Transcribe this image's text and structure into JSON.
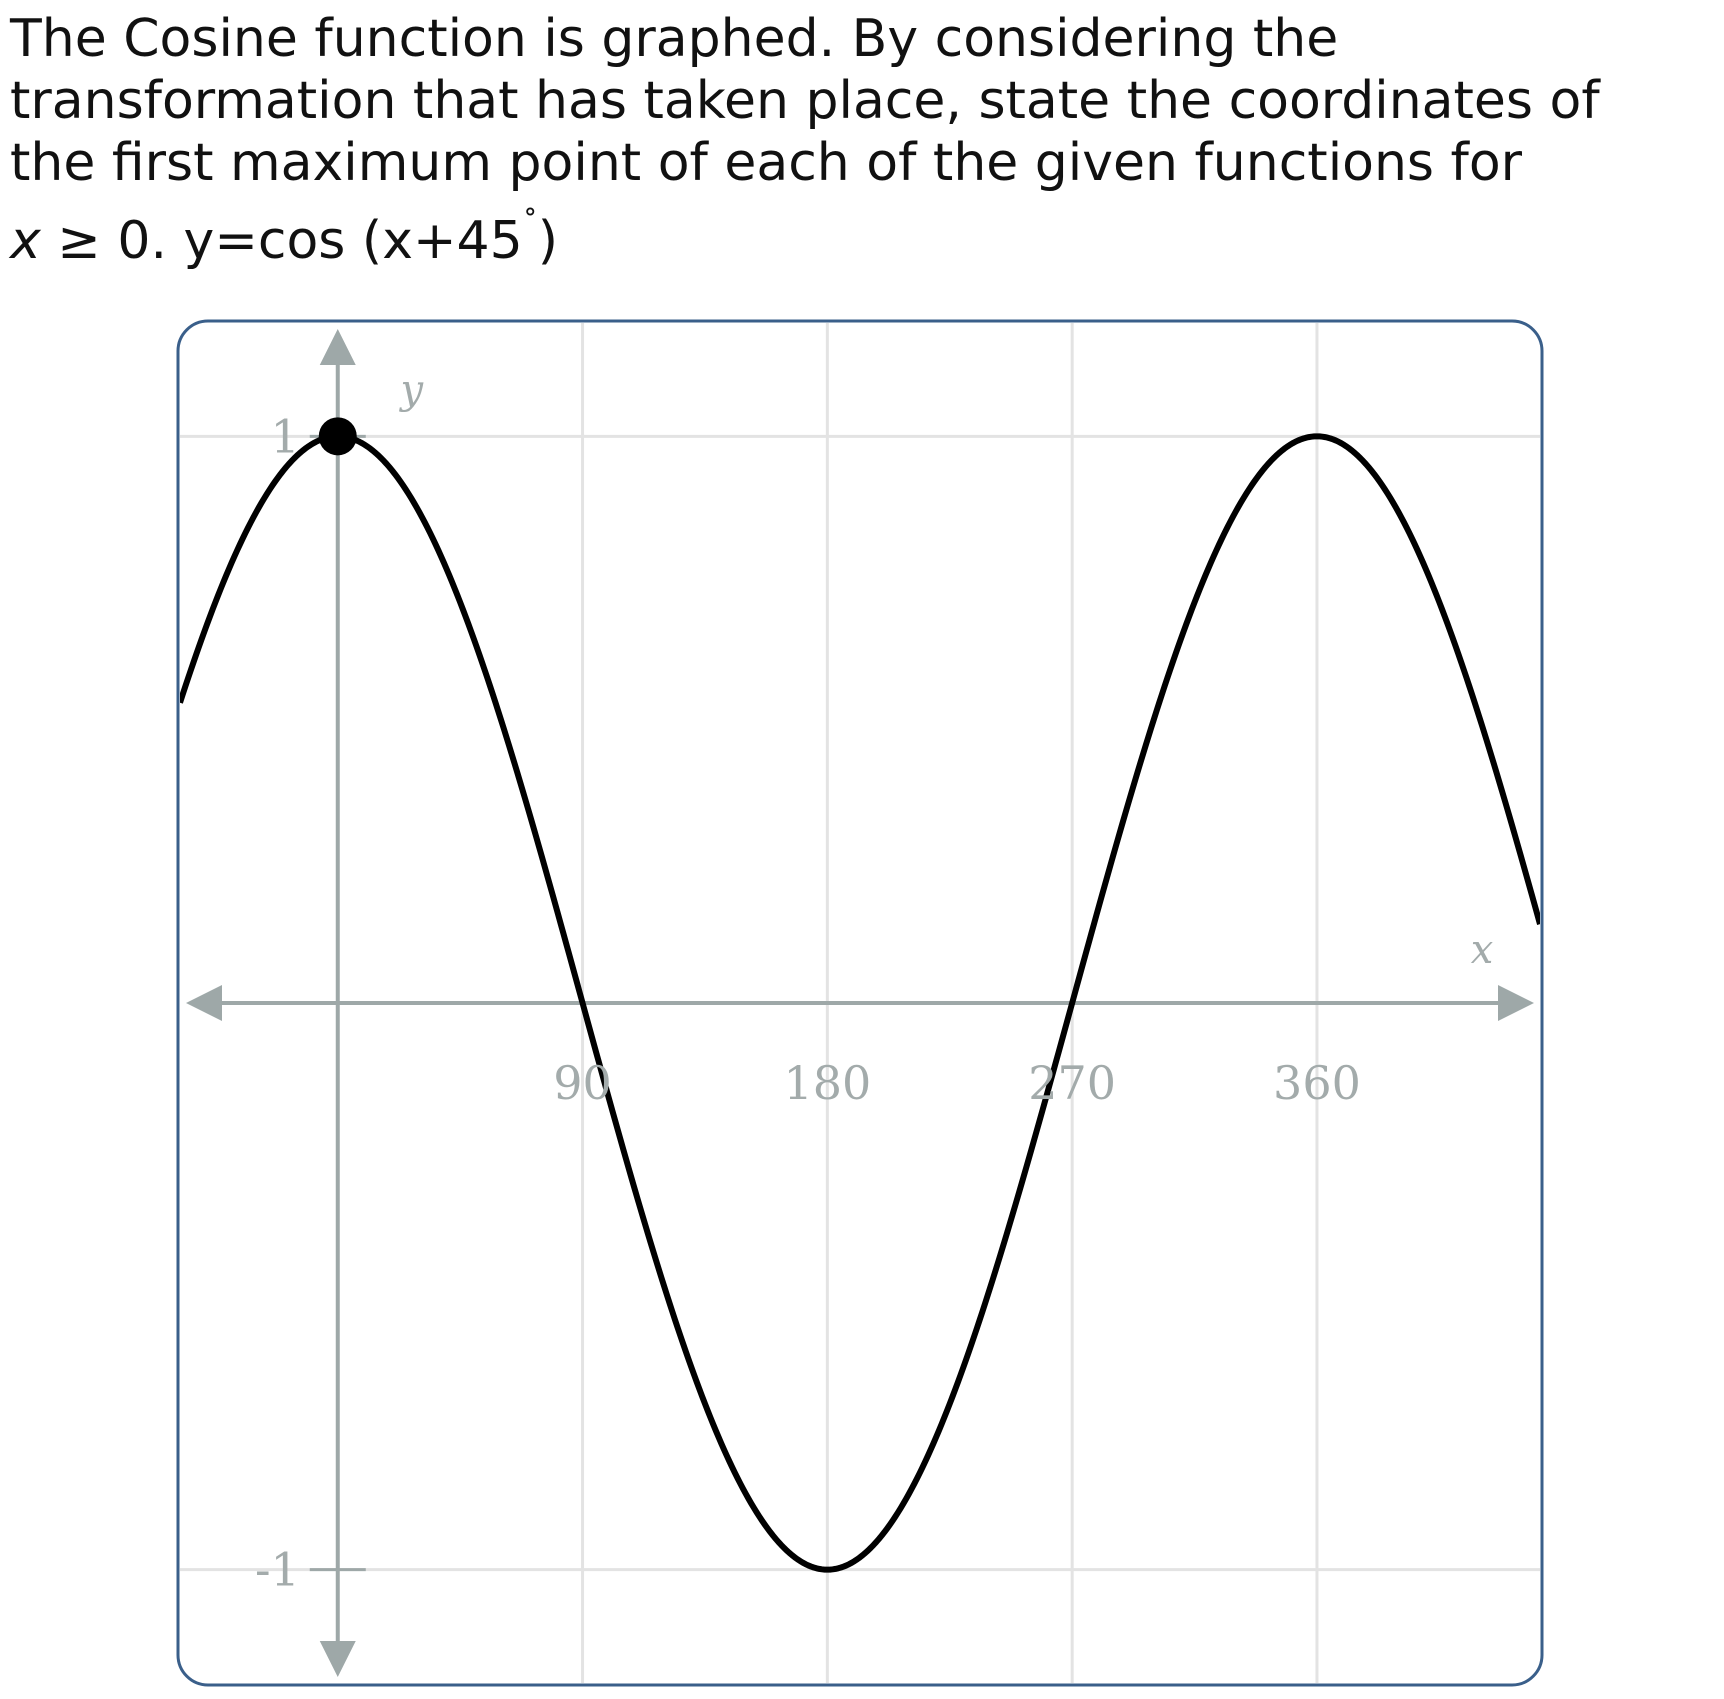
{
  "question": {
    "line1": "The Cosine function is graphed. By considering the",
    "line2": "transformation that has taken place, state the coordinates of",
    "line3": "the first maximum point of each of the given functions for",
    "var": "x",
    "cond_rest": " ≥ 0. y=cos (x+45",
    "deg": "˚",
    "close": ")"
  },
  "colors": {
    "curve": "#000000",
    "axis": "#9ea8a8",
    "grid": "#e3e3e3",
    "frame": "#3a5f8a"
  },
  "chart_data": {
    "type": "line",
    "function": "y = cos(x)",
    "xlabel": "x",
    "ylabel": "y",
    "xlim": [
      -58,
      442
    ],
    "ylim": [
      -1.2,
      1.2
    ],
    "x_ticks": [
      90,
      180,
      270,
      360
    ],
    "x_tick_labels": [
      "90",
      "180",
      "270",
      "360"
    ],
    "y_ticks": [
      1,
      -1
    ],
    "y_tick_labels": [
      "1",
      "-1"
    ],
    "grid": true,
    "series": [
      {
        "x": [
          -58,
          -45,
          -30,
          -15,
          0,
          15,
          30,
          45,
          60,
          75,
          90,
          105,
          120,
          135,
          150,
          165,
          180,
          195,
          210,
          225,
          240,
          255,
          270,
          285,
          300,
          315,
          330,
          345,
          360,
          375,
          390,
          405,
          418
        ],
        "y": [
          0.53,
          0.71,
          0.87,
          0.97,
          1,
          0.97,
          0.87,
          0.71,
          0.5,
          0.26,
          0,
          -0.26,
          -0.5,
          -0.71,
          -0.87,
          -0.97,
          -1,
          -0.97,
          -0.87,
          -0.71,
          -0.5,
          -0.26,
          0,
          0.26,
          0.5,
          0.71,
          0.87,
          0.97,
          1,
          0.97,
          0.87,
          0.71,
          0.53
        ]
      }
    ],
    "marked_point": {
      "x": 0,
      "y": 1
    }
  }
}
